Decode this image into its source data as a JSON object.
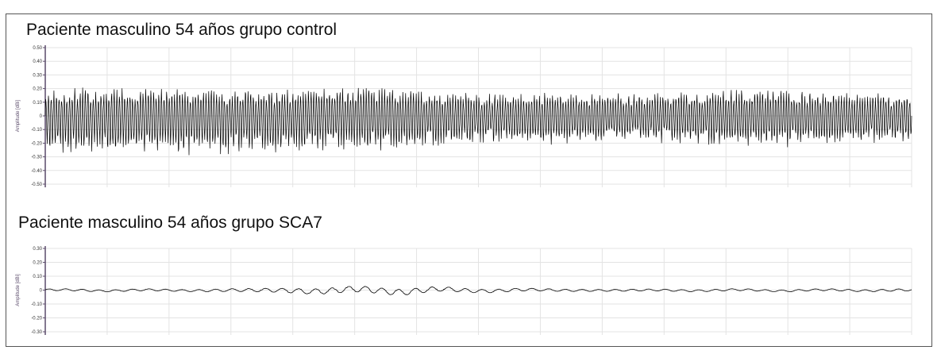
{
  "colors": {
    "trace": "#000000",
    "grid": "#e3e3e3",
    "axis": "#5a4a6a",
    "tick_text": "#333333"
  },
  "chart_data": [
    {
      "type": "line",
      "title": "Paciente masculino 54 años grupo control",
      "ylabel": "Amplitude [dBi]",
      "ylim": [
        -0.5,
        0.5
      ],
      "yticks": [
        "0.50",
        "0.40",
        "0.30",
        "0.20",
        "0.10",
        "0",
        "-0.10",
        "-0.20",
        "-0.30",
        "-0.40",
        "-0.50"
      ],
      "grid": true,
      "series": [
        {
          "description_values": "dense oscillation, positive peaks ~0.20, negative peaks ~-0.25 to -0.30",
          "envelope_max": [
            0.2,
            0.21,
            0.2,
            0.21,
            0.2,
            0.2,
            0.21,
            0.22,
            0.2,
            0.18,
            0.17,
            0.18,
            0.17,
            0.17,
            0.18,
            0.2,
            0.2,
            0.18,
            0.17,
            0.16
          ],
          "envelope_min": [
            -0.28,
            -0.3,
            -0.29,
            -0.3,
            -0.28,
            -0.27,
            -0.26,
            -0.28,
            -0.25,
            -0.22,
            -0.2,
            -0.22,
            -0.2,
            -0.18,
            -0.22,
            -0.25,
            -0.24,
            -0.21,
            -0.2,
            -0.2
          ]
        }
      ]
    },
    {
      "type": "line",
      "title": "Paciente masculino 54 años grupo SCA7",
      "ylabel": "Amplitude [dBi]",
      "ylim": [
        -0.3,
        0.3
      ],
      "yticks": [
        "0.30",
        "0.20",
        "0.10",
        "0",
        "-0.10",
        "-0.20",
        "-0.30"
      ],
      "grid": true,
      "series": [
        {
          "envelope_max": [
            0.01,
            0.01,
            0.01,
            0.01,
            0.015,
            0.02,
            0.03,
            0.03,
            0.035,
            0.02,
            0.02,
            0.015,
            0.01,
            0.01,
            0.01,
            0.01,
            0.01,
            0.01,
            0.01,
            0.015
          ],
          "envelope_min": [
            -0.015,
            -0.015,
            -0.015,
            -0.015,
            -0.02,
            -0.03,
            -0.04,
            -0.045,
            -0.04,
            -0.03,
            -0.02,
            -0.015,
            -0.015,
            -0.015,
            -0.015,
            -0.015,
            -0.015,
            -0.015,
            -0.015,
            -0.015
          ]
        }
      ]
    }
  ]
}
